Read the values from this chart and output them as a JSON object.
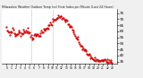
{
  "title": "Milwaukee Weather Outdoor Temp (vs) Heat Index per Minute (Last 24 Hours)",
  "title2": "Outdoor Temp / Heat Index",
  "line_color": "#cc0000",
  "bg_color": "#f0f0f0",
  "plot_bg_color": "#ffffff",
  "grid_color": "#bbbbbb",
  "ylim": [
    33,
    78
  ],
  "yticks": [
    35,
    40,
    45,
    50,
    55,
    60,
    65,
    70,
    75
  ],
  "num_points": 144,
  "vline_x": [
    0.235,
    0.44
  ]
}
